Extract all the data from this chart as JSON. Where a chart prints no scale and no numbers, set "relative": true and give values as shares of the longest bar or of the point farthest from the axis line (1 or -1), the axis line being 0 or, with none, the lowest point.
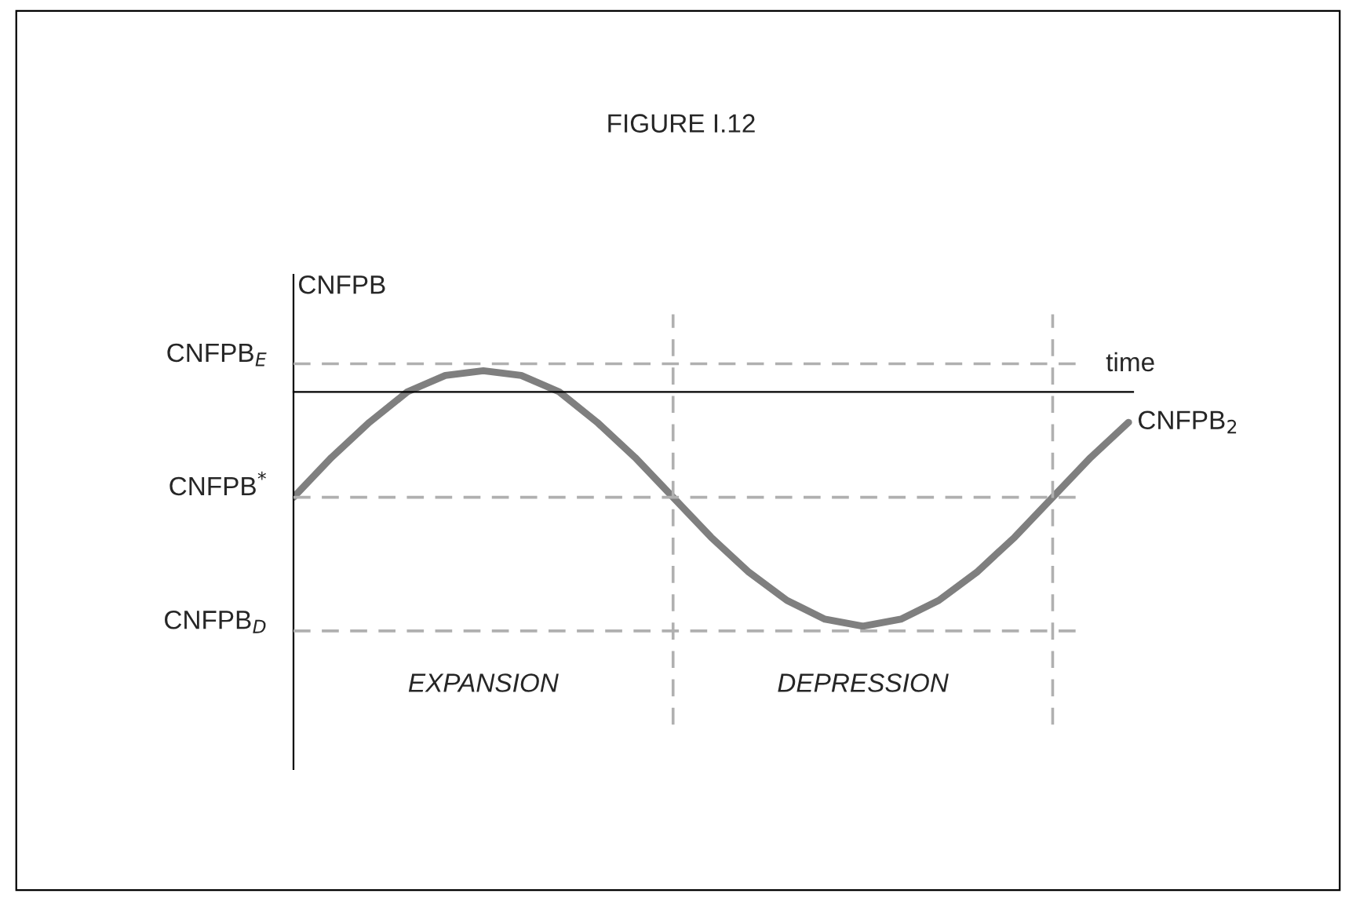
{
  "chart_data": {
    "type": "line",
    "title": "FIGURE I.12",
    "xlabel": "time",
    "ylabel": "CNFPB",
    "relative": true,
    "categories": [
      null,
      null,
      null,
      null,
      null,
      null,
      null,
      null,
      null,
      null,
      null,
      null,
      null,
      null,
      null,
      null,
      null,
      null,
      null,
      null,
      null,
      null,
      null
    ],
    "series": [
      {
        "name": "CNFPB$_{2}$",
        "color": "#7f7f7f",
        "values": [
          -0.45,
          -0.28,
          -0.13,
          0,
          0.07,
          0.09,
          0.07,
          0,
          -0.13,
          -0.28,
          -0.45,
          -0.62,
          -0.77,
          -0.89,
          -0.97,
          -1,
          -0.97,
          -0.89,
          -0.77,
          -0.62,
          -0.45,
          -0.28,
          -0.13
        ]
      }
    ],
    "ref_lines": [
      {
        "axis": "y",
        "value": 0.12,
        "label": "CNFPB$_{E}$",
        "color": "#b0b0b0",
        "line_style": "dashed"
      },
      {
        "axis": "y",
        "value": -0.45,
        "label": "CNFPB$^{*}$",
        "color": "#b0b0b0",
        "line_style": "dashed"
      },
      {
        "axis": "y",
        "value": -1.02,
        "label": "CNFPB$_{D}$",
        "color": "#b0b0b0",
        "line_style": "dashed"
      }
    ],
    "annotations": [
      "EXPANSION",
      "DEPRESSION"
    ],
    "legend": false,
    "marker": "none",
    "line_style": "solid"
  }
}
